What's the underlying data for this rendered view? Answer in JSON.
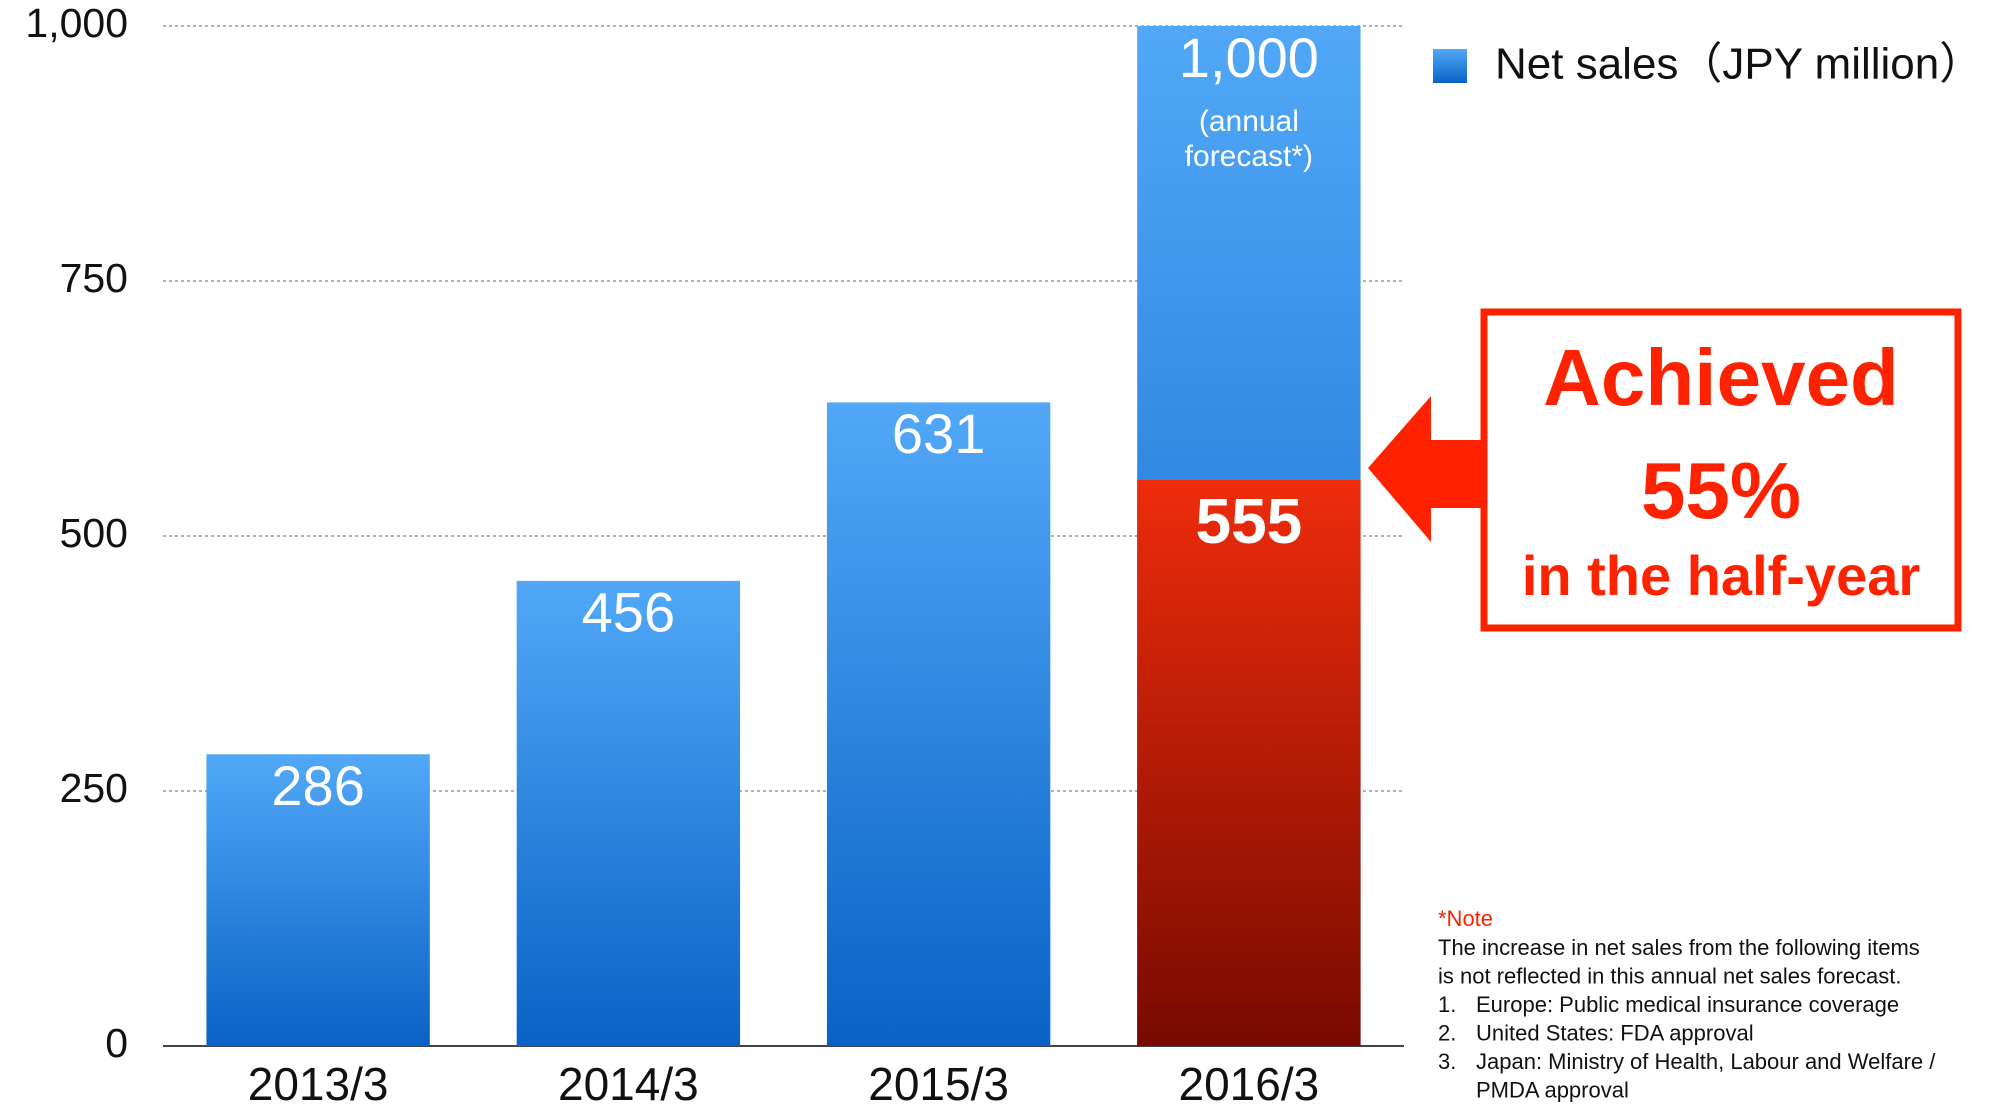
{
  "chart_data": {
    "type": "bar",
    "categories": [
      "2013/3",
      "2014/3",
      "2015/3",
      "2016/3"
    ],
    "series": [
      {
        "name": "Net sales（JPY million）",
        "color": "#2f86e6",
        "values": [
          286,
          456,
          631,
          1000
        ],
        "value_labels": [
          "286",
          "456",
          "631",
          "1,000"
        ]
      },
      {
        "color": "#d01e08",
        "values": [
          null,
          null,
          null,
          555
        ]
      }
    ],
    "ylim": [
      0,
      1000
    ],
    "yticks": [
      0,
      250,
      500,
      750,
      {
        "value": 1000,
        "label": "1,000"
      }
    ],
    "grid": true,
    "legend": "top-right",
    "annotation": [
      "(annual",
      "forecast*)"
    ],
    "callout": [
      "Achieved",
      "55%",
      "in the half-year"
    ],
    "note": {
      "title": "*Note",
      "intro": [
        "The increase in net sales from the following items",
        "is not reflected in this annual net sales forecast."
      ],
      "items": [
        {
          "number": "1.",
          "lines": [
            "Europe: Public medical insurance coverage"
          ]
        },
        {
          "number": "2.",
          "lines": [
            "United States: FDA approval"
          ]
        },
        {
          "number": "3.",
          "lines": [
            "Japan: Ministry of Health, Labour and Welfare /",
            "PMDA approval"
          ]
        }
      ]
    }
  }
}
